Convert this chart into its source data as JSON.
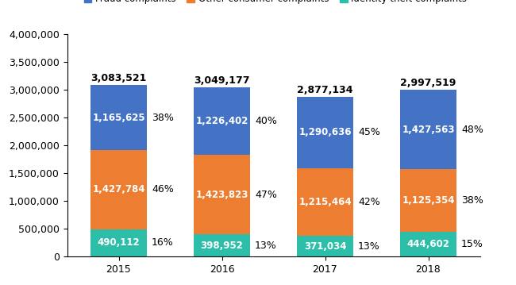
{
  "years": [
    "2015",
    "2016",
    "2017",
    "2018"
  ],
  "identity_theft": [
    490112,
    398952,
    371034,
    444602
  ],
  "other_consumer": [
    1427784,
    1423823,
    1215464,
    1125354
  ],
  "fraud": [
    1165625,
    1226402,
    1290636,
    1427563
  ],
  "totals": [
    3083521,
    3049177,
    2877134,
    2997519
  ],
  "identity_pct": [
    "16%",
    "13%",
    "13%",
    "15%"
  ],
  "other_pct": [
    "46%",
    "47%",
    "42%",
    "38%"
  ],
  "fraud_pct": [
    "38%",
    "40%",
    "45%",
    "48%"
  ],
  "colors": {
    "fraud": "#4472C4",
    "other_consumer": "#ED7D31",
    "identity_theft": "#2DBEAA"
  },
  "bar_width": 0.55,
  "ylim": [
    0,
    4000000
  ],
  "yticks": [
    0,
    500000,
    1000000,
    1500000,
    2000000,
    2500000,
    3000000,
    3500000,
    4000000
  ],
  "label_fontsize": 8.5,
  "pct_fontsize": 9,
  "total_fontsize": 9,
  "tick_fontsize": 9
}
